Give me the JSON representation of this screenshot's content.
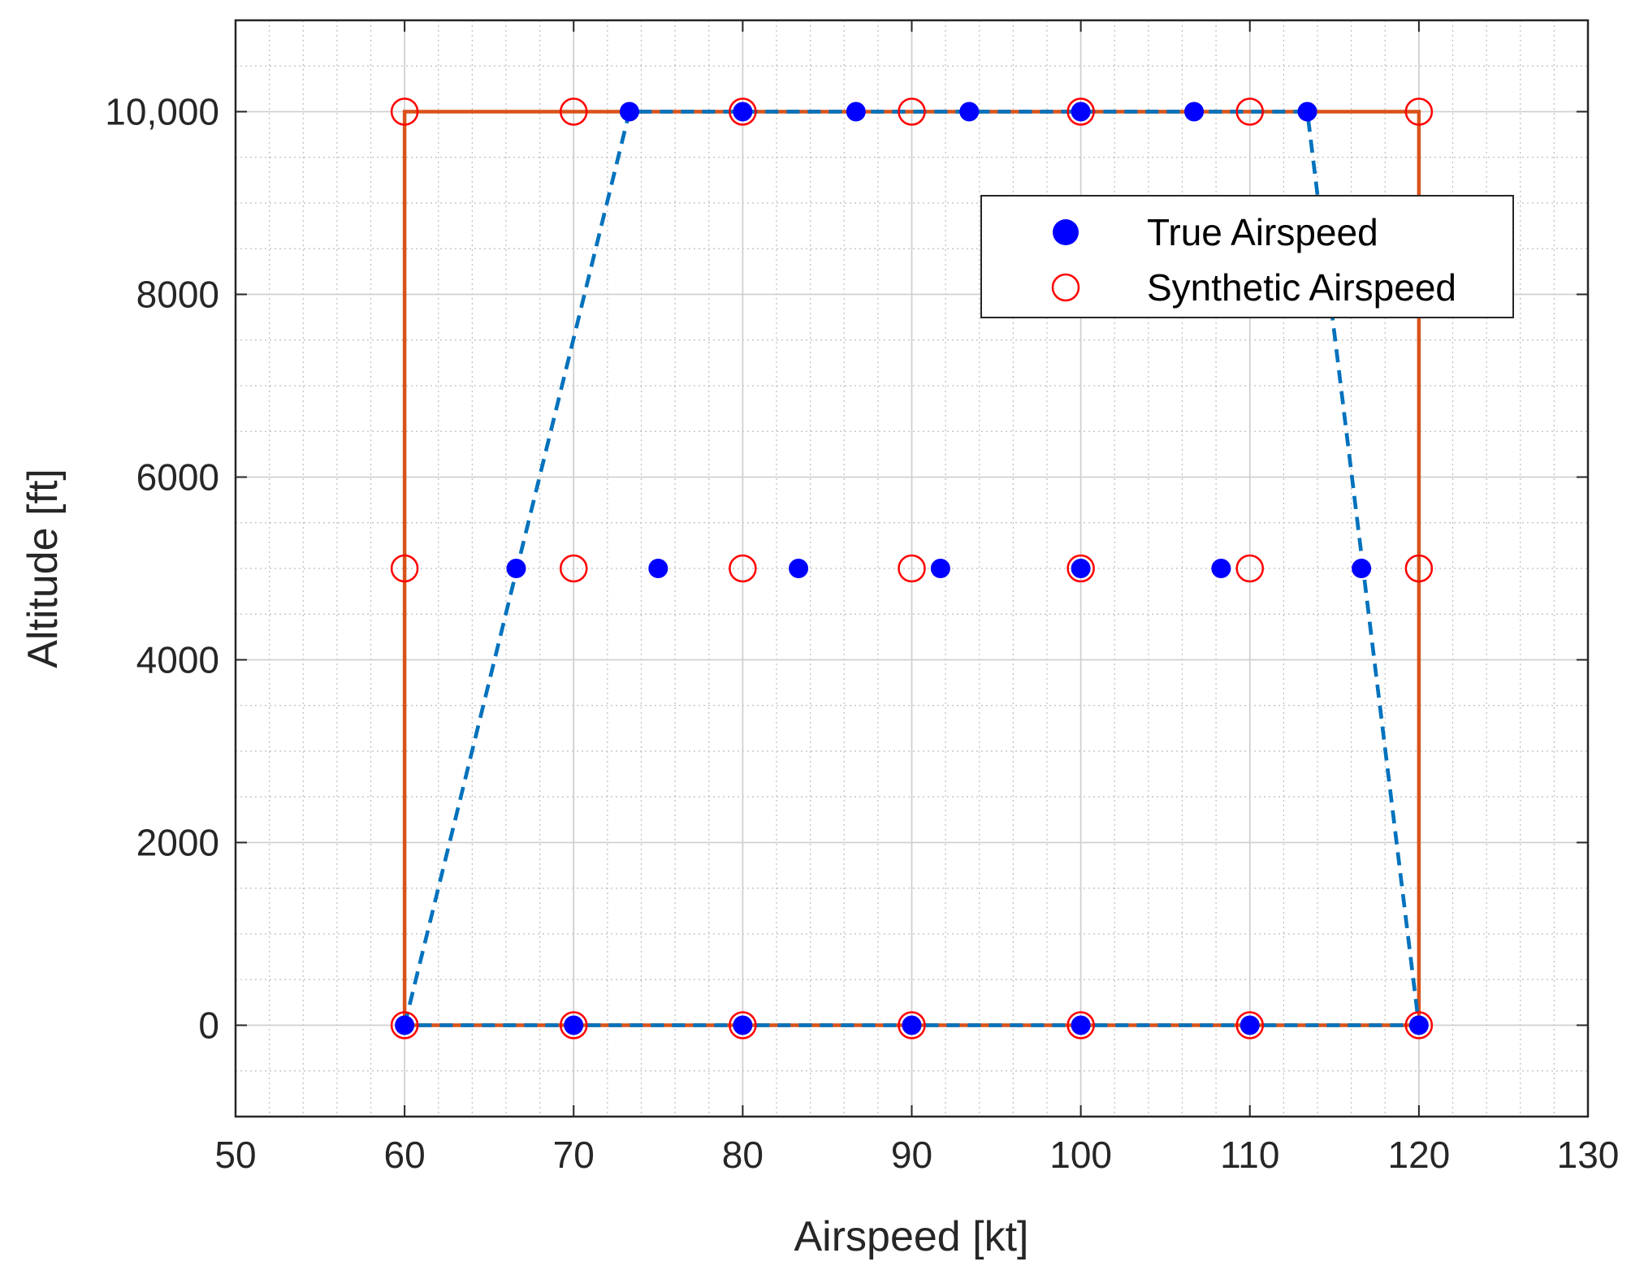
{
  "chart_data": {
    "type": "scatter",
    "title": "",
    "xlabel": "Airspeed [kt]",
    "ylabel": "Altitude [ft]",
    "xlim": [
      50,
      130
    ],
    "ylim": [
      -1000,
      11000
    ],
    "xticks": [
      50,
      60,
      70,
      80,
      90,
      100,
      110,
      120,
      130
    ],
    "xtick_labels": [
      "50",
      "60",
      "70",
      "80",
      "90",
      "100",
      "110",
      "120",
      "130"
    ],
    "yticks": [
      0,
      2000,
      4000,
      6000,
      8000,
      10000
    ],
    "ytick_labels": [
      "0",
      "2000",
      "4000",
      "6000",
      "8000",
      "10,000"
    ],
    "grid": true,
    "minor_grid": true,
    "legend_position": "top-right",
    "colors": {
      "true_marker": "#0000ff",
      "synthetic_marker": "#ff0000",
      "true_envelope": "#0072bd",
      "synthetic_envelope": "#d95319",
      "axes": "#262626",
      "grid_major": "#d0d0d0",
      "grid_minor": "#bdbdbd"
    },
    "series": [
      {
        "name": "True Airspeed",
        "marker": "filled-circle",
        "points": [
          {
            "x": 60,
            "y": 0
          },
          {
            "x": 70,
            "y": 0
          },
          {
            "x": 80,
            "y": 0
          },
          {
            "x": 90,
            "y": 0
          },
          {
            "x": 100,
            "y": 0
          },
          {
            "x": 110,
            "y": 0
          },
          {
            "x": 120,
            "y": 0
          },
          {
            "x": 66.6,
            "y": 5000
          },
          {
            "x": 75,
            "y": 5000
          },
          {
            "x": 83.3,
            "y": 5000
          },
          {
            "x": 91.7,
            "y": 5000
          },
          {
            "x": 100,
            "y": 5000
          },
          {
            "x": 108.3,
            "y": 5000
          },
          {
            "x": 116.6,
            "y": 5000
          },
          {
            "x": 73.3,
            "y": 10000
          },
          {
            "x": 80,
            "y": 10000
          },
          {
            "x": 86.7,
            "y": 10000
          },
          {
            "x": 93.4,
            "y": 10000
          },
          {
            "x": 100,
            "y": 10000
          },
          {
            "x": 106.7,
            "y": 10000
          },
          {
            "x": 113.4,
            "y": 10000
          }
        ]
      },
      {
        "name": "Synthetic Airspeed",
        "marker": "open-circle",
        "points": [
          {
            "x": 60,
            "y": 0
          },
          {
            "x": 70,
            "y": 0
          },
          {
            "x": 80,
            "y": 0
          },
          {
            "x": 90,
            "y": 0
          },
          {
            "x": 100,
            "y": 0
          },
          {
            "x": 110,
            "y": 0
          },
          {
            "x": 120,
            "y": 0
          },
          {
            "x": 60,
            "y": 5000
          },
          {
            "x": 70,
            "y": 5000
          },
          {
            "x": 80,
            "y": 5000
          },
          {
            "x": 90,
            "y": 5000
          },
          {
            "x": 100,
            "y": 5000
          },
          {
            "x": 110,
            "y": 5000
          },
          {
            "x": 120,
            "y": 5000
          },
          {
            "x": 60,
            "y": 10000
          },
          {
            "x": 70,
            "y": 10000
          },
          {
            "x": 80,
            "y": 10000
          },
          {
            "x": 90,
            "y": 10000
          },
          {
            "x": 100,
            "y": 10000
          },
          {
            "x": 110,
            "y": 10000
          },
          {
            "x": 120,
            "y": 10000
          }
        ]
      }
    ],
    "envelopes": [
      {
        "name": "true-airspeed-envelope",
        "style": "dashed",
        "points": [
          {
            "x": 60,
            "y": 0
          },
          {
            "x": 73.3,
            "y": 10000
          },
          {
            "x": 113.4,
            "y": 10000
          },
          {
            "x": 120,
            "y": 0
          },
          {
            "x": 60,
            "y": 0
          }
        ]
      },
      {
        "name": "synthetic-airspeed-envelope",
        "style": "solid",
        "points": [
          {
            "x": 60,
            "y": 0
          },
          {
            "x": 60,
            "y": 10000
          },
          {
            "x": 120,
            "y": 10000
          },
          {
            "x": 120,
            "y": 0
          },
          {
            "x": 60,
            "y": 0
          }
        ]
      }
    ]
  }
}
